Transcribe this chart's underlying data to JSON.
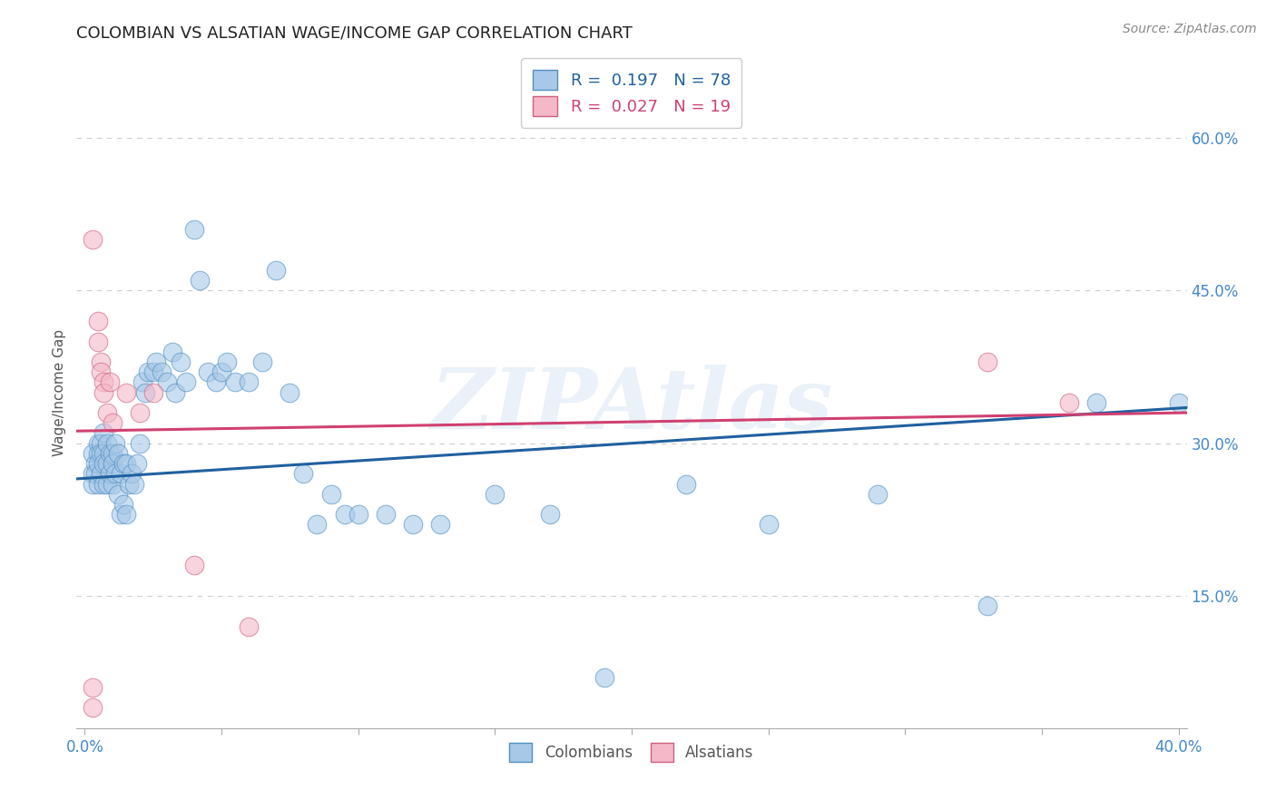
{
  "title": "COLOMBIAN VS ALSATIAN WAGE/INCOME GAP CORRELATION CHART",
  "source": "Source: ZipAtlas.com",
  "ylabel": "Wage/Income Gap",
  "xlim": [
    -0.003,
    0.403
  ],
  "ylim": [
    0.02,
    0.68
  ],
  "xticks": [
    0.0,
    0.05,
    0.1,
    0.15,
    0.2,
    0.25,
    0.3,
    0.35,
    0.4
  ],
  "xtick_labels_show": [
    true,
    false,
    false,
    false,
    false,
    false,
    false,
    false,
    true
  ],
  "xtick_labels": [
    "0.0%",
    "",
    "",
    "",
    "",
    "",
    "",
    "",
    "40.0%"
  ],
  "yticks_right": [
    0.15,
    0.3,
    0.45,
    0.6
  ],
  "ytick_right_labels": [
    "15.0%",
    "30.0%",
    "45.0%",
    "60.0%"
  ],
  "background_color": "#ffffff",
  "grid_color": "#cccccc",
  "watermark": "ZIPAtlas",
  "blue_dot_color": "#a8c8e8",
  "pink_dot_color": "#f4b8c8",
  "blue_edge_color": "#5090c0",
  "pink_edge_color": "#d06080",
  "blue_line_color": "#2060a0",
  "pink_line_color": "#d04070",
  "legend_label_blue": "R =  0.197   N = 78",
  "legend_label_pink": "R =  0.027   N = 19",
  "bottom_label_blue": "Colombians",
  "bottom_label_pink": "Alsatians",
  "blue_scatter_x": [
    0.003,
    0.003,
    0.003,
    0.004,
    0.004,
    0.005,
    0.005,
    0.005,
    0.005,
    0.006,
    0.006,
    0.006,
    0.007,
    0.007,
    0.007,
    0.007,
    0.008,
    0.008,
    0.008,
    0.009,
    0.009,
    0.01,
    0.01,
    0.01,
    0.011,
    0.011,
    0.012,
    0.012,
    0.013,
    0.013,
    0.014,
    0.014,
    0.015,
    0.015,
    0.016,
    0.017,
    0.018,
    0.019,
    0.02,
    0.021,
    0.022,
    0.023,
    0.025,
    0.026,
    0.028,
    0.03,
    0.032,
    0.033,
    0.035,
    0.037,
    0.04,
    0.042,
    0.045,
    0.048,
    0.05,
    0.052,
    0.055,
    0.06,
    0.065,
    0.07,
    0.075,
    0.08,
    0.085,
    0.09,
    0.095,
    0.1,
    0.11,
    0.12,
    0.13,
    0.15,
    0.17,
    0.19,
    0.22,
    0.25,
    0.29,
    0.33,
    0.37,
    0.4
  ],
  "blue_scatter_y": [
    0.29,
    0.27,
    0.26,
    0.28,
    0.27,
    0.3,
    0.29,
    0.28,
    0.26,
    0.3,
    0.29,
    0.27,
    0.31,
    0.29,
    0.28,
    0.26,
    0.3,
    0.28,
    0.26,
    0.29,
    0.27,
    0.29,
    0.28,
    0.26,
    0.3,
    0.27,
    0.29,
    0.25,
    0.27,
    0.23,
    0.28,
    0.24,
    0.28,
    0.23,
    0.26,
    0.27,
    0.26,
    0.28,
    0.3,
    0.36,
    0.35,
    0.37,
    0.37,
    0.38,
    0.37,
    0.36,
    0.39,
    0.35,
    0.38,
    0.36,
    0.51,
    0.46,
    0.37,
    0.36,
    0.37,
    0.38,
    0.36,
    0.36,
    0.38,
    0.47,
    0.35,
    0.27,
    0.22,
    0.25,
    0.23,
    0.23,
    0.23,
    0.22,
    0.22,
    0.25,
    0.23,
    0.07,
    0.26,
    0.22,
    0.25,
    0.14,
    0.34,
    0.34
  ],
  "pink_scatter_x": [
    0.003,
    0.003,
    0.003,
    0.005,
    0.005,
    0.006,
    0.006,
    0.007,
    0.007,
    0.008,
    0.009,
    0.01,
    0.015,
    0.02,
    0.025,
    0.04,
    0.06,
    0.33,
    0.36
  ],
  "pink_scatter_y": [
    0.5,
    0.06,
    0.04,
    0.42,
    0.4,
    0.38,
    0.37,
    0.36,
    0.35,
    0.33,
    0.36,
    0.32,
    0.35,
    0.33,
    0.35,
    0.18,
    0.12,
    0.38,
    0.34
  ],
  "blue_trend_start": 0.265,
  "blue_trend_end": 0.335,
  "pink_trend_start": 0.312,
  "pink_trend_end": 0.33
}
